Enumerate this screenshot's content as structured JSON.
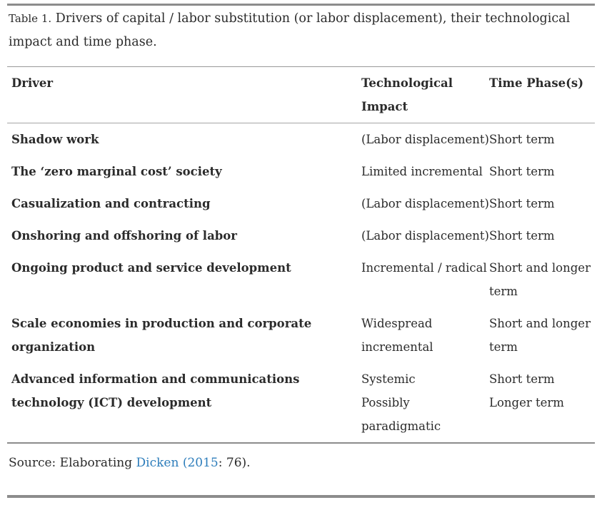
{
  "colors": {
    "link_blue": "#2d7dbb",
    "rule_gray": "#999999",
    "bar_gray": "#8c8c8c",
    "text_dark": "#2b2b2b"
  },
  "title": {
    "label": "Table 1.",
    "text": " Drivers of capital / labor substitution (or labor displacement), their technological impact and time phase."
  },
  "table": {
    "columns": [
      "Driver",
      "Technological\nImpact",
      "Time Phase(s)"
    ],
    "rows": [
      {
        "driver": "Shadow work",
        "impact": "(Labor displacement)",
        "time": "Short term"
      },
      {
        "driver": "The ‘zero marginal cost’ society",
        "impact": "Limited incremental",
        "time": "Short term"
      },
      {
        "driver": "Casualization and contracting",
        "impact": "(Labor displacement)",
        "time": "Short term"
      },
      {
        "driver": "Onshoring and offshoring of labor",
        "impact": "(Labor displacement)",
        "time": "Short term"
      },
      {
        "driver": "Ongoing product and service development",
        "impact": "Incremental / radical",
        "time": "Short and longer\nterm"
      },
      {
        "driver": "Scale economies in production and corporate\norganization",
        "impact": "Widespread\nincremental",
        "time": "Short and longer\nterm"
      },
      {
        "driver": "Advanced information and communications\ntechnology (ICT) development",
        "impact": "Systemic\nPossibly\nparadigmatic",
        "time": "Short term\nLonger term"
      }
    ]
  },
  "source": {
    "prefix": "Source: Elaborating ",
    "link": "Dicken (2015",
    "suffix": ": 76)."
  }
}
